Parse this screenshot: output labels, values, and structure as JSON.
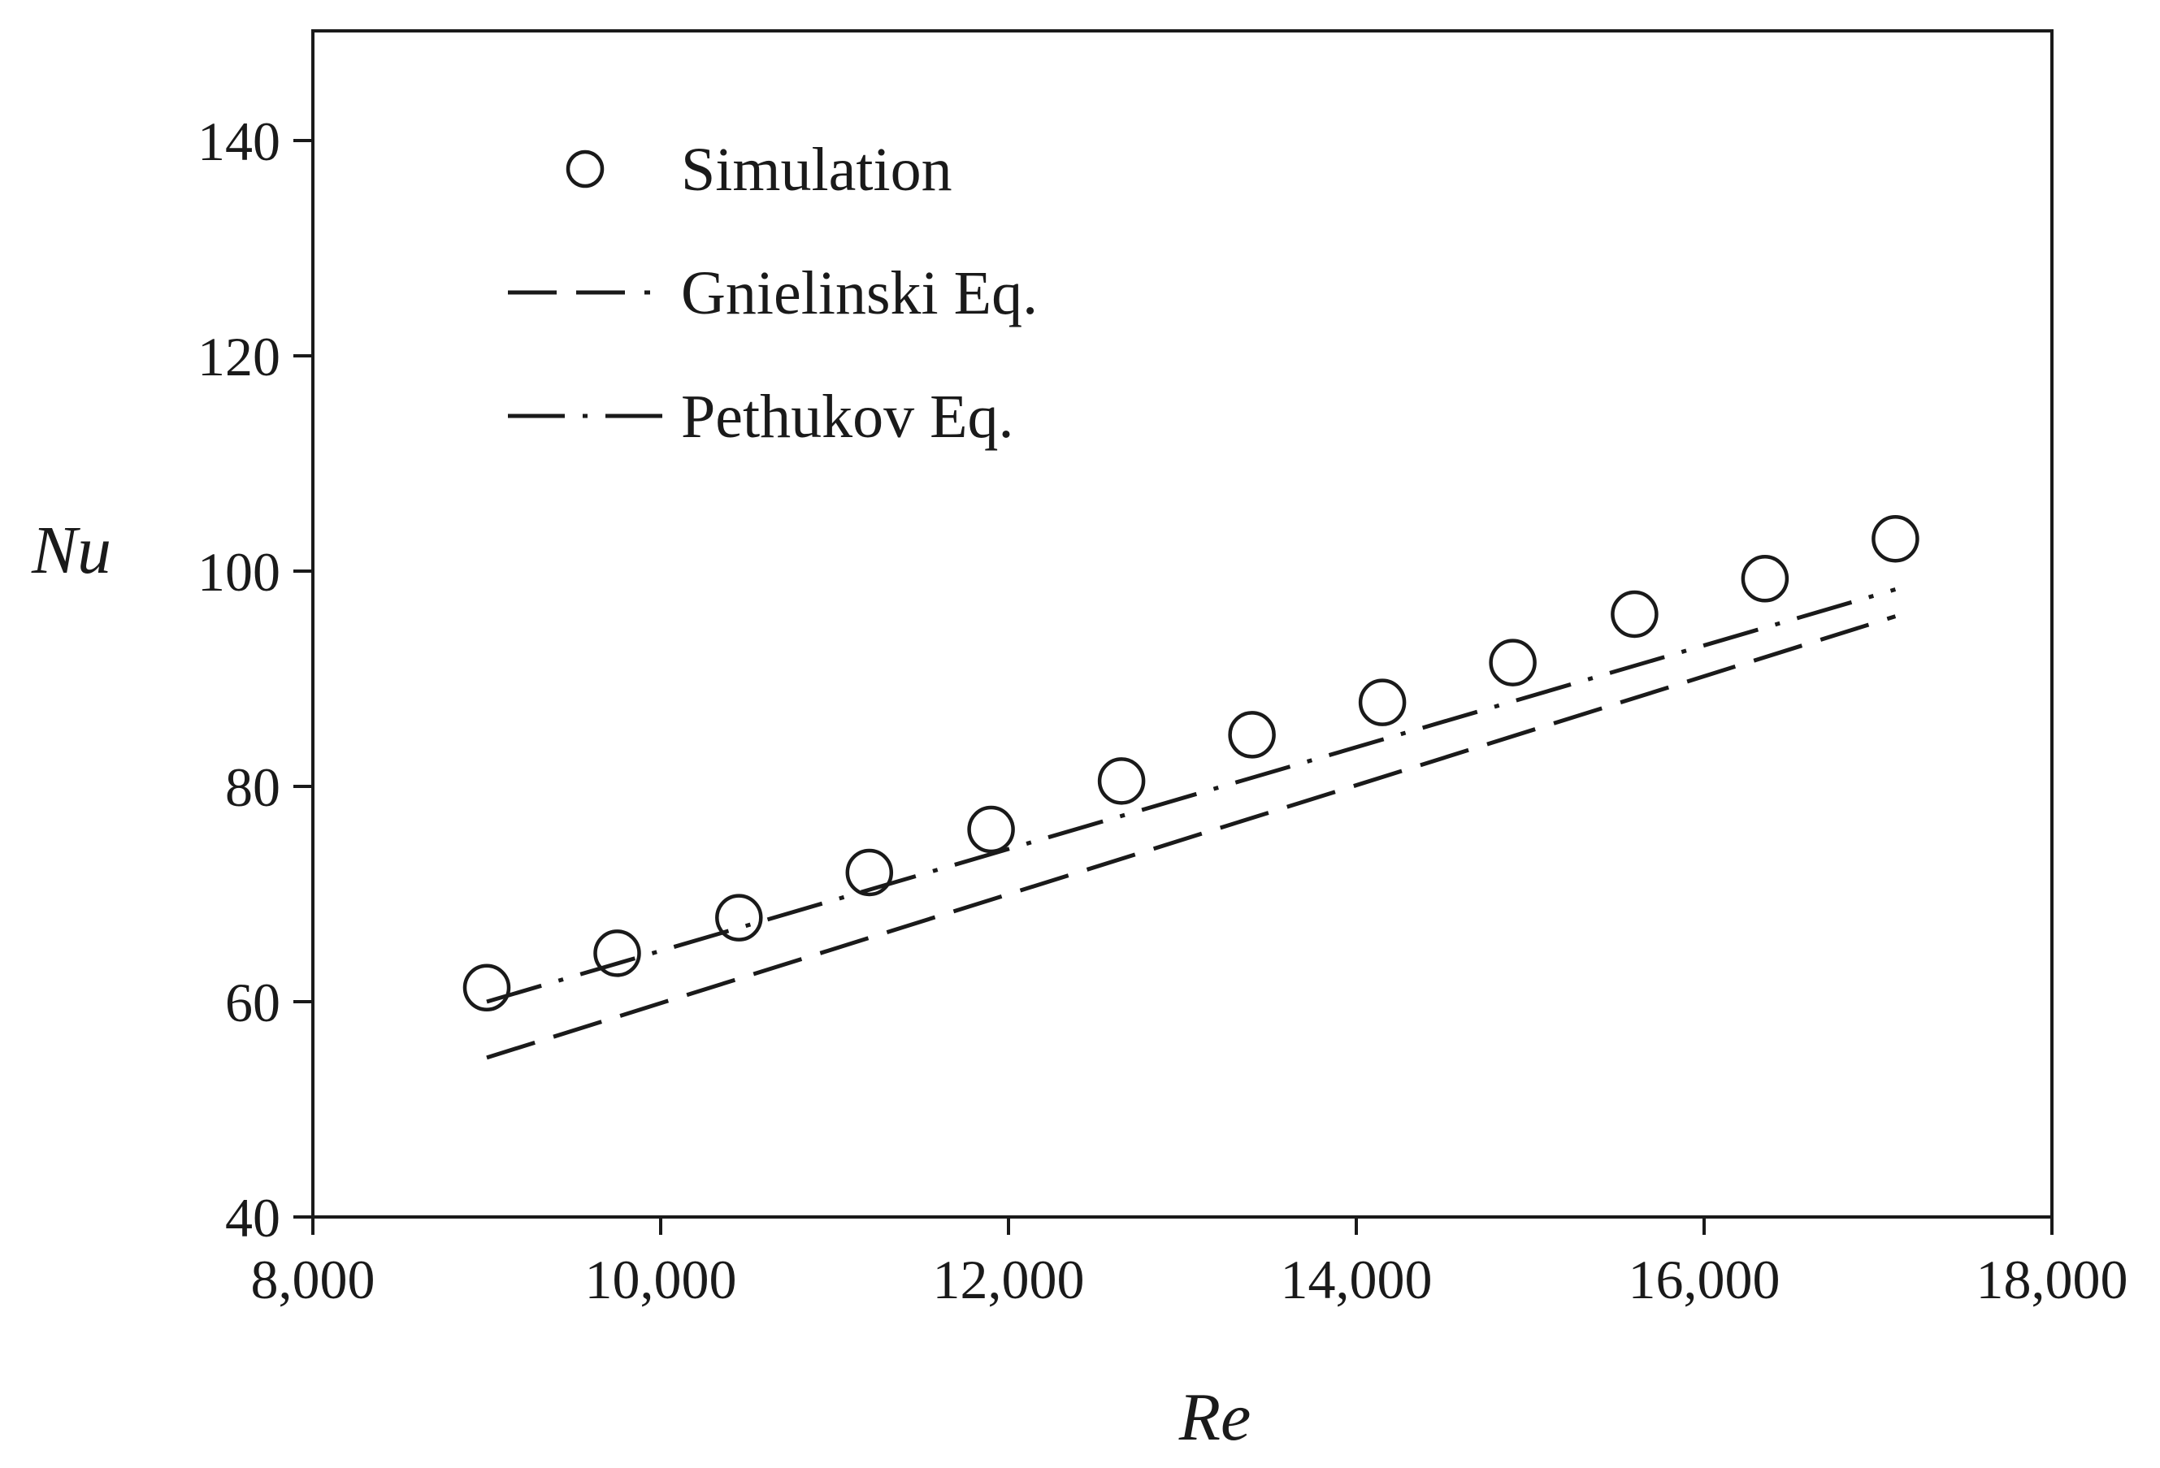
{
  "chart_data": {
    "type": "scatter",
    "title": "",
    "xlabel": "Re",
    "ylabel": "Nu",
    "xlim": [
      8000,
      18000
    ],
    "ylim": [
      40,
      150
    ],
    "x_ticks": [
      8000,
      10000,
      12000,
      14000,
      16000,
      18000
    ],
    "x_tick_labels": [
      "8,000",
      "10,000",
      "12,000",
      "14,000",
      "16,000",
      "18,000"
    ],
    "y_ticks": [
      40,
      60,
      80,
      100,
      120,
      140
    ],
    "y_tick_labels": [
      "40",
      "60",
      "80",
      "100",
      "120",
      "140"
    ],
    "grid": false,
    "legend_position": "top-left",
    "series": [
      {
        "name": "Simulation",
        "style": "open-circle",
        "x": [
          9000,
          9750,
          10450,
          11200,
          11900,
          12650,
          13400,
          14150,
          14900,
          15600,
          16350,
          17100
        ],
        "y": [
          61.3,
          64.5,
          67.8,
          72.0,
          76.0,
          80.5,
          84.8,
          87.8,
          91.5,
          96.0,
          99.3,
          103.0
        ]
      },
      {
        "name": "Gnielinski Eq.",
        "style": "dashed",
        "x": [
          9000,
          17100
        ],
        "y": [
          54.8,
          95.8
        ]
      },
      {
        "name": "Pethukov Eq.",
        "style": "dash-dot",
        "x": [
          9000,
          17100
        ],
        "y": [
          60.0,
          98.3
        ]
      }
    ]
  }
}
